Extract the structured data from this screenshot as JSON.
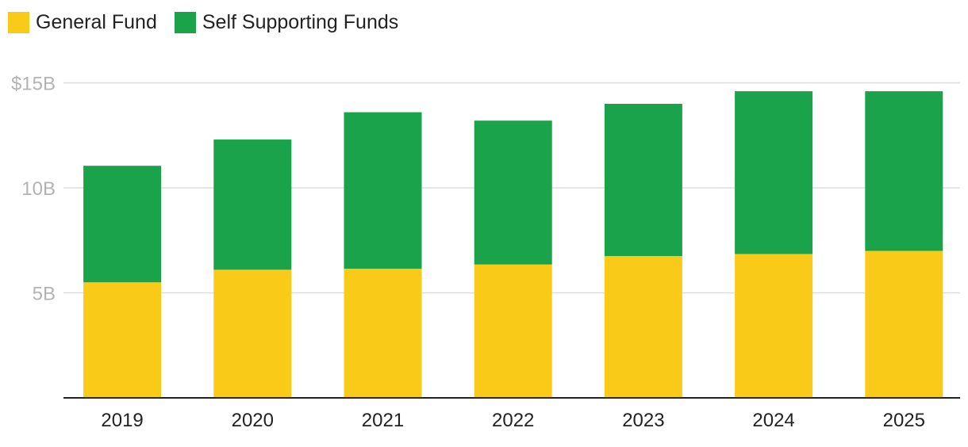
{
  "legend": {
    "items": [
      {
        "label": "General Fund",
        "color": "#F9CB18"
      },
      {
        "label": "Self Supporting Funds",
        "color": "#1AA34A"
      }
    ],
    "placement": "top-left"
  },
  "chart_data": {
    "type": "bar",
    "stacked": true,
    "categories": [
      "2019",
      "2020",
      "2021",
      "2022",
      "2023",
      "2024",
      "2025"
    ],
    "series": [
      {
        "name": "General Fund",
        "color": "#F9CB18",
        "values": [
          5.5,
          6.1,
          6.15,
          6.35,
          6.75,
          6.85,
          7.0
        ]
      },
      {
        "name": "Self Supporting Funds",
        "color": "#1AA34A",
        "values": [
          5.55,
          6.2,
          7.45,
          6.85,
          7.25,
          7.75,
          7.6
        ]
      }
    ],
    "y_ticks": [
      {
        "value": 5,
        "label": "5B"
      },
      {
        "value": 10,
        "label": "10B"
      },
      {
        "value": 15,
        "label": "$15B"
      }
    ],
    "ylim": [
      0,
      15
    ],
    "grid": true,
    "title": "",
    "xlabel": "",
    "ylabel": ""
  }
}
